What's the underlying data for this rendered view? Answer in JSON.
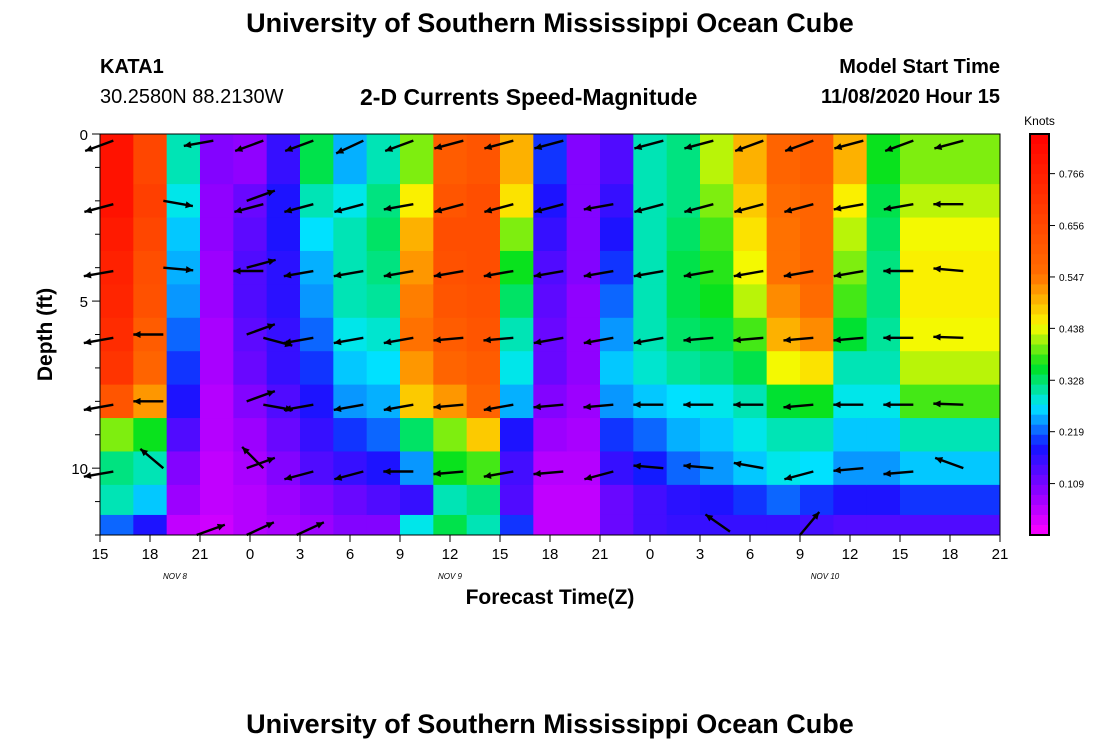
{
  "header": {
    "title": "University of Southern Mississippi Ocean Cube",
    "station": "KATA1",
    "coords": "30.2580N 88.2130W",
    "subtitle": "2-D Currents Speed-Magnitude",
    "model_start_label": "Model Start Time",
    "model_start_value": "11/08/2020 Hour 15"
  },
  "footer": {
    "title": "University of Southern Mississippi Ocean Cube"
  },
  "chart_data": {
    "type": "heatmap",
    "title": "2-D Currents Speed-Magnitude",
    "xlabel": "Forecast Time(Z)",
    "ylabel": "Depth (ft)",
    "x_ticks": [
      "15",
      "18",
      "21",
      "0",
      "3",
      "6",
      "9",
      "12",
      "15",
      "18",
      "21",
      "0",
      "3",
      "6",
      "9",
      "12",
      "15",
      "18",
      "21"
    ],
    "x_range_hours": [
      0,
      54
    ],
    "date_labels": [
      {
        "text": "NOV 8",
        "hour": 4.5
      },
      {
        "text": "NOV 9",
        "hour": 21
      },
      {
        "text": "NOV 10",
        "hour": 43.5
      }
    ],
    "y_ticks": [
      "0",
      "5",
      "10"
    ],
    "y_range_ft": [
      0,
      12
    ],
    "colorbar": {
      "title": "Knots",
      "labels": [
        "0.766",
        "0.656",
        "0.547",
        "0.438",
        "0.328",
        "0.219",
        "0.109"
      ],
      "range": [
        0,
        0.85
      ]
    },
    "depths_ft": [
      1,
      2,
      3,
      4,
      5,
      6,
      7,
      8,
      9,
      10,
      11,
      11.8
    ],
    "speed_profiles": [
      {
        "hour": 0,
        "speeds": [
          0.8,
          0.8,
          0.78,
          0.76,
          0.75,
          0.73,
          0.71,
          0.62,
          0.4,
          0.32,
          0.3,
          0.22
        ]
      },
      {
        "hour": 2,
        "speeds": [
          0.66,
          0.68,
          0.66,
          0.64,
          0.63,
          0.6,
          0.58,
          0.52,
          0.36,
          0.3,
          0.26,
          0.18
        ]
      },
      {
        "hour": 4,
        "speeds": [
          0.3,
          0.28,
          0.26,
          0.25,
          0.24,
          0.22,
          0.2,
          0.18,
          0.14,
          0.1,
          0.08,
          0.05
        ]
      },
      {
        "hour": 6,
        "speeds": [
          0.1,
          0.09,
          0.09,
          0.08,
          0.08,
          0.07,
          0.07,
          0.06,
          0.06,
          0.05,
          0.05,
          0.04
        ]
      },
      {
        "hour": 8,
        "speeds": [
          0.09,
          0.12,
          0.13,
          0.14,
          0.14,
          0.13,
          0.12,
          0.1,
          0.08,
          0.07,
          0.06,
          0.06
        ]
      },
      {
        "hour": 10,
        "speeds": [
          0.16,
          0.18,
          0.18,
          0.17,
          0.17,
          0.16,
          0.16,
          0.14,
          0.12,
          0.1,
          0.08,
          0.07
        ]
      },
      {
        "hour": 12,
        "speeds": [
          0.34,
          0.3,
          0.27,
          0.25,
          0.24,
          0.22,
          0.2,
          0.18,
          0.16,
          0.14,
          0.1,
          0.08
        ]
      },
      {
        "hour": 14,
        "speeds": [
          0.25,
          0.28,
          0.3,
          0.3,
          0.3,
          0.28,
          0.26,
          0.24,
          0.2,
          0.16,
          0.12,
          0.1
        ]
      },
      {
        "hour": 16,
        "speeds": [
          0.3,
          0.32,
          0.33,
          0.32,
          0.31,
          0.29,
          0.27,
          0.25,
          0.22,
          0.18,
          0.14,
          0.1
        ]
      },
      {
        "hour": 18,
        "speeds": [
          0.4,
          0.45,
          0.5,
          0.52,
          0.54,
          0.55,
          0.52,
          0.48,
          0.33,
          0.24,
          0.16,
          0.28
        ]
      },
      {
        "hour": 20,
        "speeds": [
          0.6,
          0.62,
          0.64,
          0.63,
          0.62,
          0.6,
          0.58,
          0.52,
          0.4,
          0.36,
          0.3,
          0.34
        ]
      },
      {
        "hour": 22,
        "speeds": [
          0.62,
          0.64,
          0.64,
          0.64,
          0.63,
          0.62,
          0.6,
          0.58,
          0.48,
          0.38,
          0.32,
          0.3
        ]
      },
      {
        "hour": 24,
        "speeds": [
          0.5,
          0.46,
          0.4,
          0.36,
          0.33,
          0.3,
          0.28,
          0.25,
          0.18,
          0.15,
          0.14,
          0.2
        ]
      },
      {
        "hour": 26,
        "speeds": [
          0.2,
          0.18,
          0.16,
          0.14,
          0.13,
          0.12,
          0.12,
          0.1,
          0.08,
          0.06,
          0.05,
          0.05
        ]
      },
      {
        "hour": 28,
        "speeds": [
          0.1,
          0.1,
          0.1,
          0.1,
          0.09,
          0.09,
          0.09,
          0.08,
          0.07,
          0.06,
          0.05,
          0.05
        ]
      },
      {
        "hour": 30,
        "speeds": [
          0.14,
          0.16,
          0.18,
          0.2,
          0.22,
          0.24,
          0.26,
          0.24,
          0.2,
          0.16,
          0.12,
          0.12
        ]
      },
      {
        "hour": 32,
        "speeds": [
          0.3,
          0.3,
          0.3,
          0.3,
          0.3,
          0.3,
          0.29,
          0.26,
          0.22,
          0.19,
          0.15,
          0.15
        ]
      },
      {
        "hour": 34,
        "speeds": [
          0.32,
          0.32,
          0.33,
          0.34,
          0.34,
          0.33,
          0.31,
          0.27,
          0.25,
          0.22,
          0.17,
          0.16
        ]
      },
      {
        "hour": 36,
        "speeds": [
          0.42,
          0.4,
          0.38,
          0.37,
          0.36,
          0.34,
          0.32,
          0.28,
          0.26,
          0.24,
          0.18,
          0.16
        ]
      },
      {
        "hour": 38,
        "speeds": [
          0.5,
          0.48,
          0.46,
          0.44,
          0.42,
          0.38,
          0.34,
          0.3,
          0.28,
          0.26,
          0.2,
          0.16
        ]
      },
      {
        "hour": 40,
        "speeds": [
          0.58,
          0.56,
          0.55,
          0.55,
          0.53,
          0.5,
          0.44,
          0.35,
          0.3,
          0.28,
          0.22,
          0.16
        ]
      },
      {
        "hour": 42,
        "speeds": [
          0.6,
          0.58,
          0.58,
          0.58,
          0.56,
          0.53,
          0.46,
          0.36,
          0.3,
          0.27,
          0.2,
          0.15
        ]
      },
      {
        "hour": 44,
        "speeds": [
          0.5,
          0.45,
          0.42,
          0.4,
          0.38,
          0.35,
          0.3,
          0.28,
          0.26,
          0.24,
          0.18,
          0.14
        ]
      },
      {
        "hour": 46,
        "speeds": [
          0.36,
          0.34,
          0.33,
          0.32,
          0.32,
          0.31,
          0.3,
          0.28,
          0.26,
          0.24,
          0.18,
          0.14
        ]
      },
      {
        "hour": 48,
        "speeds": [
          0.4,
          0.42,
          0.44,
          0.45,
          0.45,
          0.44,
          0.42,
          0.38,
          0.3,
          0.26,
          0.2,
          0.14
        ]
      }
    ],
    "vectors": [
      {
        "hour": 0.8,
        "depth": 0.2,
        "dir": 200,
        "mag": 1.0
      },
      {
        "hour": 6.8,
        "depth": 0.2,
        "dir": 190,
        "mag": 1.0
      },
      {
        "hour": 9.8,
        "depth": 0.2,
        "dir": 200,
        "mag": 1.0
      },
      {
        "hour": 12.8,
        "depth": 0.2,
        "dir": 200,
        "mag": 1.0
      },
      {
        "hour": 15.8,
        "depth": 0.2,
        "dir": 205,
        "mag": 1.0
      },
      {
        "hour": 18.8,
        "depth": 0.2,
        "dir": 200,
        "mag": 1.0
      },
      {
        "hour": 21.8,
        "depth": 0.2,
        "dir": 195,
        "mag": 1.0
      },
      {
        "hour": 24.8,
        "depth": 0.2,
        "dir": 195,
        "mag": 1.0
      },
      {
        "hour": 27.8,
        "depth": 0.2,
        "dir": 195,
        "mag": 1.0
      },
      {
        "hour": 33.8,
        "depth": 0.2,
        "dir": 195,
        "mag": 1.0
      },
      {
        "hour": 36.8,
        "depth": 0.2,
        "dir": 195,
        "mag": 1.0
      },
      {
        "hour": 39.8,
        "depth": 0.2,
        "dir": 200,
        "mag": 1.0
      },
      {
        "hour": 42.8,
        "depth": 0.2,
        "dir": 200,
        "mag": 1.0
      },
      {
        "hour": 45.8,
        "depth": 0.2,
        "dir": 195,
        "mag": 1.0
      },
      {
        "hour": 48.8,
        "depth": 0.2,
        "dir": 200,
        "mag": 1.0
      },
      {
        "hour": 51.8,
        "depth": 0.2,
        "dir": 195,
        "mag": 1.0
      },
      {
        "hour": 0.8,
        "depth": 2.1,
        "dir": 195,
        "mag": 1.0
      },
      {
        "hour": 3.8,
        "depth": 2.0,
        "dir": 350,
        "mag": 1.0
      },
      {
        "hour": 8.8,
        "depth": 2.0,
        "dir": 20,
        "mag": 1.0
      },
      {
        "hour": 9.8,
        "depth": 2.1,
        "dir": 195,
        "mag": 1.0
      },
      {
        "hour": 12.8,
        "depth": 2.1,
        "dir": 195,
        "mag": 1.0
      },
      {
        "hour": 15.8,
        "depth": 2.1,
        "dir": 195,
        "mag": 1.0
      },
      {
        "hour": 18.8,
        "depth": 2.1,
        "dir": 190,
        "mag": 1.0
      },
      {
        "hour": 21.8,
        "depth": 2.1,
        "dir": 195,
        "mag": 1.0
      },
      {
        "hour": 24.8,
        "depth": 2.1,
        "dir": 195,
        "mag": 1.0
      },
      {
        "hour": 27.8,
        "depth": 2.1,
        "dir": 195,
        "mag": 1.0
      },
      {
        "hour": 30.8,
        "depth": 2.1,
        "dir": 190,
        "mag": 1.0
      },
      {
        "hour": 33.8,
        "depth": 2.1,
        "dir": 195,
        "mag": 1.0
      },
      {
        "hour": 36.8,
        "depth": 2.1,
        "dir": 195,
        "mag": 1.0
      },
      {
        "hour": 39.8,
        "depth": 2.1,
        "dir": 195,
        "mag": 1.0
      },
      {
        "hour": 42.8,
        "depth": 2.1,
        "dir": 195,
        "mag": 1.0
      },
      {
        "hour": 45.8,
        "depth": 2.1,
        "dir": 190,
        "mag": 1.0
      },
      {
        "hour": 48.8,
        "depth": 2.1,
        "dir": 190,
        "mag": 1.0
      },
      {
        "hour": 51.8,
        "depth": 2.1,
        "dir": 180,
        "mag": 1.0
      },
      {
        "hour": 0.8,
        "depth": 4.1,
        "dir": 190,
        "mag": 1.0
      },
      {
        "hour": 3.8,
        "depth": 4.0,
        "dir": 355,
        "mag": 1.0
      },
      {
        "hour": 8.8,
        "depth": 4.0,
        "dir": 15,
        "mag": 1.0
      },
      {
        "hour": 9.8,
        "depth": 4.1,
        "dir": 180,
        "mag": 1.0
      },
      {
        "hour": 12.8,
        "depth": 4.1,
        "dir": 190,
        "mag": 1.0
      },
      {
        "hour": 15.8,
        "depth": 4.1,
        "dir": 190,
        "mag": 1.0
      },
      {
        "hour": 18.8,
        "depth": 4.1,
        "dir": 190,
        "mag": 1.0
      },
      {
        "hour": 21.8,
        "depth": 4.1,
        "dir": 190,
        "mag": 1.0
      },
      {
        "hour": 24.8,
        "depth": 4.1,
        "dir": 190,
        "mag": 1.0
      },
      {
        "hour": 27.8,
        "depth": 4.1,
        "dir": 190,
        "mag": 1.0
      },
      {
        "hour": 30.8,
        "depth": 4.1,
        "dir": 190,
        "mag": 1.0
      },
      {
        "hour": 33.8,
        "depth": 4.1,
        "dir": 190,
        "mag": 1.0
      },
      {
        "hour": 36.8,
        "depth": 4.1,
        "dir": 190,
        "mag": 1.0
      },
      {
        "hour": 39.8,
        "depth": 4.1,
        "dir": 190,
        "mag": 1.0
      },
      {
        "hour": 42.8,
        "depth": 4.1,
        "dir": 190,
        "mag": 1.0
      },
      {
        "hour": 45.8,
        "depth": 4.1,
        "dir": 190,
        "mag": 1.0
      },
      {
        "hour": 48.8,
        "depth": 4.1,
        "dir": 180,
        "mag": 1.0
      },
      {
        "hour": 51.8,
        "depth": 4.1,
        "dir": 175,
        "mag": 1.0
      },
      {
        "hour": 0.8,
        "depth": 6.1,
        "dir": 190,
        "mag": 1.0
      },
      {
        "hour": 3.8,
        "depth": 6.0,
        "dir": 180,
        "mag": 1.0
      },
      {
        "hour": 8.8,
        "depth": 6.0,
        "dir": 20,
        "mag": 1.0
      },
      {
        "hour": 9.8,
        "depth": 6.1,
        "dir": 345,
        "mag": 1.0
      },
      {
        "hour": 12.8,
        "depth": 6.1,
        "dir": 190,
        "mag": 1.0
      },
      {
        "hour": 15.8,
        "depth": 6.1,
        "dir": 190,
        "mag": 1.0
      },
      {
        "hour": 18.8,
        "depth": 6.1,
        "dir": 190,
        "mag": 1.0
      },
      {
        "hour": 21.8,
        "depth": 6.1,
        "dir": 185,
        "mag": 1.0
      },
      {
        "hour": 24.8,
        "depth": 6.1,
        "dir": 185,
        "mag": 1.0
      },
      {
        "hour": 27.8,
        "depth": 6.1,
        "dir": 190,
        "mag": 1.0
      },
      {
        "hour": 30.8,
        "depth": 6.1,
        "dir": 190,
        "mag": 1.0
      },
      {
        "hour": 33.8,
        "depth": 6.1,
        "dir": 190,
        "mag": 1.0
      },
      {
        "hour": 36.8,
        "depth": 6.1,
        "dir": 185,
        "mag": 1.0
      },
      {
        "hour": 39.8,
        "depth": 6.1,
        "dir": 185,
        "mag": 1.0
      },
      {
        "hour": 42.8,
        "depth": 6.1,
        "dir": 185,
        "mag": 1.0
      },
      {
        "hour": 45.8,
        "depth": 6.1,
        "dir": 185,
        "mag": 1.0
      },
      {
        "hour": 48.8,
        "depth": 6.1,
        "dir": 180,
        "mag": 1.0
      },
      {
        "hour": 51.8,
        "depth": 6.1,
        "dir": 178,
        "mag": 1.0
      },
      {
        "hour": 0.8,
        "depth": 8.1,
        "dir": 190,
        "mag": 1.0
      },
      {
        "hour": 3.8,
        "depth": 8.0,
        "dir": 180,
        "mag": 1.0
      },
      {
        "hour": 8.8,
        "depth": 8.0,
        "dir": 20,
        "mag": 1.0
      },
      {
        "hour": 9.8,
        "depth": 8.1,
        "dir": 350,
        "mag": 1.0
      },
      {
        "hour": 12.8,
        "depth": 8.1,
        "dir": 190,
        "mag": 1.0
      },
      {
        "hour": 15.8,
        "depth": 8.1,
        "dir": 190,
        "mag": 1.0
      },
      {
        "hour": 18.8,
        "depth": 8.1,
        "dir": 190,
        "mag": 1.0
      },
      {
        "hour": 21.8,
        "depth": 8.1,
        "dir": 185,
        "mag": 1.0
      },
      {
        "hour": 24.8,
        "depth": 8.1,
        "dir": 190,
        "mag": 1.0
      },
      {
        "hour": 27.8,
        "depth": 8.1,
        "dir": 185,
        "mag": 1.0
      },
      {
        "hour": 30.8,
        "depth": 8.1,
        "dir": 185,
        "mag": 1.0
      },
      {
        "hour": 33.8,
        "depth": 8.1,
        "dir": 180,
        "mag": 1.0
      },
      {
        "hour": 36.8,
        "depth": 8.1,
        "dir": 180,
        "mag": 1.0
      },
      {
        "hour": 39.8,
        "depth": 8.1,
        "dir": 180,
        "mag": 1.0
      },
      {
        "hour": 42.8,
        "depth": 8.1,
        "dir": 185,
        "mag": 1.0
      },
      {
        "hour": 45.8,
        "depth": 8.1,
        "dir": 180,
        "mag": 1.0
      },
      {
        "hour": 48.8,
        "depth": 8.1,
        "dir": 180,
        "mag": 1.0
      },
      {
        "hour": 51.8,
        "depth": 8.1,
        "dir": 178,
        "mag": 1.0
      },
      {
        "hour": 0.8,
        "depth": 10.1,
        "dir": 190,
        "mag": 1.0
      },
      {
        "hour": 3.8,
        "depth": 10.0,
        "dir": 140,
        "mag": 1.0
      },
      {
        "hour": 8.8,
        "depth": 10.0,
        "dir": 20,
        "mag": 1.0
      },
      {
        "hour": 9.8,
        "depth": 10.0,
        "dir": 135,
        "mag": 1.0
      },
      {
        "hour": 12.8,
        "depth": 10.1,
        "dir": 195,
        "mag": 1.0
      },
      {
        "hour": 15.8,
        "depth": 10.1,
        "dir": 195,
        "mag": 1.0
      },
      {
        "hour": 18.8,
        "depth": 10.1,
        "dir": 180,
        "mag": 1.0
      },
      {
        "hour": 21.8,
        "depth": 10.1,
        "dir": 185,
        "mag": 1.0
      },
      {
        "hour": 24.8,
        "depth": 10.1,
        "dir": 190,
        "mag": 1.0
      },
      {
        "hour": 27.8,
        "depth": 10.1,
        "dir": 185,
        "mag": 1.0
      },
      {
        "hour": 30.8,
        "depth": 10.1,
        "dir": 195,
        "mag": 1.0
      },
      {
        "hour": 33.8,
        "depth": 10.0,
        "dir": 175,
        "mag": 1.0
      },
      {
        "hour": 36.8,
        "depth": 10.0,
        "dir": 175,
        "mag": 1.0
      },
      {
        "hour": 39.8,
        "depth": 10.0,
        "dir": 170,
        "mag": 1.0
      },
      {
        "hour": 42.8,
        "depth": 10.1,
        "dir": 195,
        "mag": 1.0
      },
      {
        "hour": 45.8,
        "depth": 10.0,
        "dir": 185,
        "mag": 1.0
      },
      {
        "hour": 48.8,
        "depth": 10.1,
        "dir": 185,
        "mag": 1.0
      },
      {
        "hour": 51.8,
        "depth": 10.0,
        "dir": 160,
        "mag": 1.0
      },
      {
        "hour": 5.8,
        "depth": 12.0,
        "dir": 20,
        "mag": 1.0
      },
      {
        "hour": 8.8,
        "depth": 12.0,
        "dir": 25,
        "mag": 1.0
      },
      {
        "hour": 11.8,
        "depth": 12.0,
        "dir": 25,
        "mag": 1.0
      },
      {
        "hour": 37.8,
        "depth": 11.9,
        "dir": 145,
        "mag": 1.0
      },
      {
        "hour": 42.0,
        "depth": 12.0,
        "dir": 50,
        "mag": 1.0
      }
    ]
  }
}
